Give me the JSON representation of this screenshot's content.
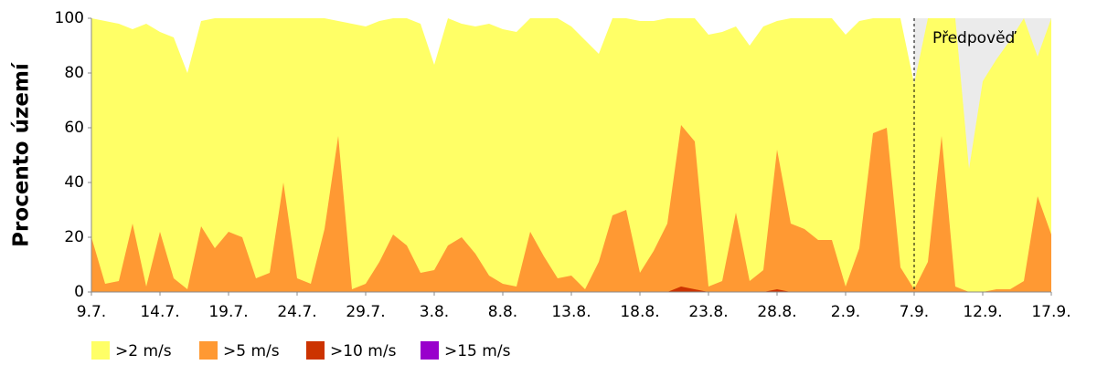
{
  "chart_data": {
    "type": "area",
    "y_label": "Procento území",
    "categories": [
      "9.7.",
      null,
      null,
      null,
      null,
      "14.7.",
      null,
      null,
      null,
      null,
      "19.7.",
      null,
      null,
      null,
      null,
      "24.7.",
      null,
      null,
      null,
      null,
      "29.7.",
      null,
      null,
      null,
      null,
      "3.8.",
      null,
      null,
      null,
      null,
      "8.8.",
      null,
      null,
      null,
      null,
      "13.8.",
      null,
      null,
      null,
      null,
      "18.8.",
      null,
      null,
      null,
      null,
      "23.8.",
      null,
      null,
      null,
      null,
      "28.8.",
      null,
      null,
      null,
      null,
      "2.9.",
      null,
      null,
      null,
      null,
      "7.9.",
      null,
      null,
      null,
      null,
      "12.9.",
      null,
      null,
      null,
      null,
      "17.9."
    ],
    "series": [
      {
        "name": ">2 m/s",
        "color": "#ffff66",
        "values": [
          100,
          99,
          98,
          96,
          98,
          95,
          93,
          80,
          99,
          100,
          100,
          100,
          100,
          100,
          100,
          100,
          100,
          100,
          99,
          98,
          97,
          99,
          100,
          100,
          98,
          83,
          100,
          98,
          97,
          98,
          96,
          95,
          100,
          100,
          100,
          97,
          92,
          87,
          100,
          100,
          99,
          99,
          100,
          100,
          100,
          94,
          95,
          97,
          90,
          97,
          99,
          100,
          100,
          100,
          100,
          94,
          99,
          100,
          100,
          100,
          76,
          100,
          100,
          100,
          45,
          77,
          85,
          92,
          100,
          86,
          100
        ]
      },
      {
        "name": ">5 m/s",
        "color": "#ff9933",
        "values": [
          20,
          3,
          4,
          25,
          2,
          22,
          5,
          1,
          24,
          16,
          22,
          20,
          5,
          7,
          40,
          5,
          3,
          23,
          57,
          1,
          3,
          11,
          21,
          17,
          7,
          8,
          17,
          20,
          14,
          6,
          3,
          2,
          22,
          13,
          5,
          6,
          1,
          11,
          28,
          30,
          7,
          15,
          25,
          61,
          55,
          2,
          4,
          29,
          4,
          8,
          52,
          25,
          23,
          19,
          19,
          2,
          16,
          58,
          60,
          9,
          1,
          11,
          57,
          2,
          0,
          0,
          1,
          1,
          4,
          35,
          21
        ]
      },
      {
        "name": ">10 m/s",
        "color": "#cc3300",
        "values": [
          0,
          0,
          0,
          0,
          0,
          0,
          0,
          0,
          0,
          0,
          0,
          0,
          0,
          0,
          0,
          0,
          0,
          0,
          0,
          0,
          0,
          0,
          0,
          0,
          0,
          0,
          0,
          0,
          0,
          0,
          0,
          0,
          0,
          0,
          0,
          0,
          0,
          0,
          0,
          0,
          0,
          0,
          0,
          2,
          1,
          0,
          0,
          0,
          0,
          0,
          1,
          0,
          0,
          0,
          0,
          0,
          0,
          0,
          0,
          0,
          0,
          0,
          0,
          0,
          0,
          0,
          0,
          0,
          0,
          0,
          0
        ]
      },
      {
        "name": ">15 m/s",
        "color": "#9900cc",
        "values": [
          0,
          0,
          0,
          0,
          0,
          0,
          0,
          0,
          0,
          0,
          0,
          0,
          0,
          0,
          0,
          0,
          0,
          0,
          0,
          0,
          0,
          0,
          0,
          0,
          0,
          0,
          0,
          0,
          0,
          0,
          0,
          0,
          0,
          0,
          0,
          0,
          0,
          0,
          0,
          0,
          0,
          0,
          0,
          0,
          0,
          0,
          0,
          0,
          0,
          0,
          0,
          0,
          0,
          0,
          0,
          0,
          0,
          0,
          0,
          0,
          0,
          0,
          0,
          0,
          0,
          0,
          0,
          0,
          0,
          0,
          0
        ]
      }
    ],
    "ylim": [
      0,
      100
    ],
    "yticks": [
      0,
      20,
      40,
      60,
      80,
      100
    ],
    "forecast": {
      "label": "Předpověď",
      "from": "7.9.",
      "color": "#ebebeb"
    }
  }
}
